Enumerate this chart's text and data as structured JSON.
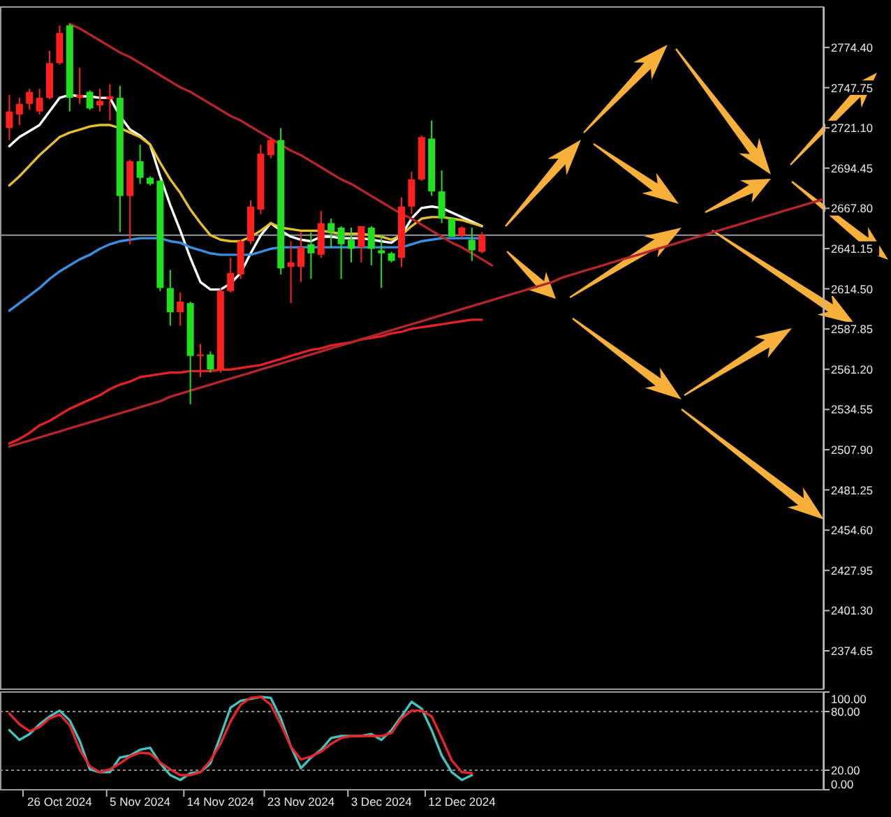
{
  "chart_data": [
    {
      "type": "candlestick",
      "categories": [
        null,
        null,
        null,
        null,
        null,
        null,
        null,
        null,
        null,
        null,
        null,
        null,
        null,
        null,
        null,
        null,
        null,
        null,
        null,
        null,
        null,
        null,
        null,
        null,
        null,
        null,
        null,
        null,
        null,
        null,
        null,
        null,
        null,
        null,
        null,
        null,
        null,
        null,
        null,
        null,
        null,
        null,
        null,
        null,
        null,
        null,
        null,
        null,
        null,
        null,
        null,
        null,
        null,
        null,
        null,
        null,
        null,
        null,
        null,
        null,
        null,
        null,
        null,
        null,
        null,
        null,
        null,
        null,
        null,
        null,
        null,
        null,
        null,
        null,
        null,
        null,
        null,
        null,
        null,
        null,
        null,
        null
      ],
      "ohlc": [
        [
          2721,
          2743,
          2713,
          2732
        ],
        [
          2730,
          2741,
          2723,
          2737
        ],
        [
          2737,
          2747,
          2733,
          2745
        ],
        [
          2732,
          2747,
          2730,
          2741
        ],
        [
          2741,
          2772,
          2740,
          2764
        ],
        [
          2764,
          2789,
          2763,
          2784
        ],
        [
          2789,
          2790,
          2732,
          2741
        ],
        [
          2741,
          2761,
          2737,
          2743
        ],
        [
          2745,
          2746,
          2733,
          2734
        ],
        [
          2736,
          2747,
          2732,
          2739
        ],
        [
          2740,
          2750,
          2726,
          2742
        ],
        [
          2741,
          2749,
          2652,
          2676
        ],
        [
          2676,
          2700,
          2644,
          2699
        ],
        [
          2699,
          2710,
          2684,
          2688
        ],
        [
          2688,
          2689,
          2683,
          2684
        ],
        [
          2686,
          2687,
          2613,
          2615
        ],
        [
          2615,
          2627,
          2590,
          2599
        ],
        [
          2599,
          2612,
          2590,
          2606
        ],
        [
          2605,
          2606,
          2538,
          2570
        ],
        [
          2570,
          2578,
          2556,
          2571
        ],
        [
          2571,
          2573,
          2559,
          2561
        ],
        [
          2561,
          2615,
          2559,
          2613
        ],
        [
          2613,
          2635,
          2612,
          2625
        ],
        [
          2624,
          2647,
          2621,
          2646
        ],
        [
          2646,
          2673,
          2644,
          2669
        ],
        [
          2667,
          2710,
          2664,
          2704
        ],
        [
          2703,
          2715,
          2701,
          2713
        ],
        [
          2713,
          2721,
          2624,
          2628
        ],
        [
          2629,
          2646,
          2605,
          2632
        ],
        [
          2629,
          2652,
          2619,
          2642
        ],
        [
          2644,
          2652,
          2621,
          2638
        ],
        [
          2637,
          2666,
          2635,
          2658
        ],
        [
          2658,
          2661,
          2642,
          2652
        ],
        [
          2655,
          2656,
          2621,
          2644
        ],
        [
          2647,
          2655,
          2632,
          2641
        ],
        [
          2642,
          2656,
          2632,
          2656
        ],
        [
          2655,
          2656,
          2630,
          2641
        ],
        [
          2640,
          2650,
          2615,
          2638
        ],
        [
          2638,
          2639,
          2632,
          2633
        ],
        [
          2635,
          2675,
          2629,
          2669
        ],
        [
          2669,
          2692,
          2664,
          2687
        ],
        [
          2687,
          2716,
          2686,
          2715
        ],
        [
          2714,
          2726,
          2676,
          2679
        ],
        [
          2679,
          2693,
          2658,
          2661
        ],
        [
          2661,
          2662,
          2649,
          2649
        ],
        [
          2650,
          2656,
          2648,
          2655
        ],
        [
          2647,
          2655,
          2633,
          2640
        ],
        [
          2639,
          2652,
          2638,
          2650
        ],
        null,
        null,
        null,
        null,
        null,
        null,
        null,
        null,
        null,
        null,
        null,
        null,
        null,
        null,
        null,
        null,
        null,
        null,
        null,
        null,
        null,
        null,
        null,
        null,
        null,
        null,
        null,
        null,
        null,
        null,
        null,
        null,
        null,
        null
      ],
      "colors": [
        "#ff2020",
        "#ff2020",
        "#ff2020",
        "#ff2020",
        "#ff2020",
        "#ff2020",
        "#20e020",
        "#ff2020",
        "#20e020",
        "#ff2020",
        "#ff2020",
        "#20e020",
        "#ff2020",
        "#20e020",
        "#20e020",
        "#20e020",
        "#20e020",
        "#ff2020",
        "#20e020",
        "#ff2020",
        "#20e020",
        "#ff2020",
        "#ff2020",
        "#ff2020",
        "#ff2020",
        "#ff2020",
        "#ff2020",
        "#20e020",
        "#ff2020",
        "#ff2020",
        "#20e020",
        "#ff2020",
        "#20e020",
        "#20e020",
        "#20e020",
        "#ff2020",
        "#20e020",
        "#20e020",
        "#20e020",
        "#ff2020",
        "#ff2020",
        "#ff2020",
        "#20e020",
        "#20e020",
        "#20e020",
        "#ff2020",
        "#20e020",
        "#ff2020",
        null,
        null,
        null,
        null,
        null,
        null,
        null,
        null,
        null,
        null,
        null,
        null,
        null,
        null,
        null,
        null,
        null,
        null,
        null,
        null,
        null,
        null,
        null,
        null,
        null,
        null,
        null,
        null,
        null,
        null,
        null,
        null,
        null,
        null
      ],
      "series": [
        {
          "type": "line",
          "color": "#ffffff",
          "values": [
            2709,
            2715,
            2719,
            2723,
            2732,
            2741,
            2743,
            2742,
            2742,
            2741,
            2741,
            2729,
            2720,
            2716,
            2710,
            2689,
            2670,
            2653,
            2635,
            2619,
            2614,
            2614,
            2618,
            2625,
            2638,
            2650,
            2658,
            2653,
            2649,
            2647,
            2646,
            2649,
            2649,
            2648,
            2648,
            2648,
            2647,
            2646,
            2645,
            2650,
            2661,
            2668,
            2669,
            2668,
            2665,
            2662,
            2659,
            2656,
            null,
            null,
            null,
            null,
            null,
            null,
            null,
            null,
            null,
            null,
            null,
            null,
            null,
            null,
            null,
            null,
            null,
            null,
            null,
            null,
            null,
            null,
            null,
            null,
            null,
            null,
            null,
            null,
            null,
            null,
            null,
            null,
            null,
            null
          ]
        },
        {
          "type": "line",
          "color": "#e6bf2e",
          "values": [
            2683,
            2689,
            2696,
            2703,
            2709,
            2715,
            2718,
            2720,
            2722,
            2723,
            2723,
            2721,
            2718,
            2715,
            2710,
            2698,
            2687,
            2678,
            2667,
            2658,
            2650,
            2647,
            2646,
            2646,
            2649,
            2653,
            2658,
            2655,
            2654,
            2653,
            2653,
            2653,
            2652,
            2651,
            2651,
            2651,
            2650,
            2649,
            2647,
            2650,
            2656,
            2661,
            2662,
            2662,
            2661,
            2660,
            2658,
            2656,
            null,
            null,
            null,
            null,
            null,
            null,
            null,
            null,
            null,
            null,
            null,
            null,
            null,
            null,
            null,
            null,
            null,
            null,
            null,
            null,
            null,
            null,
            null,
            null,
            null,
            null,
            null,
            null,
            null,
            null,
            null,
            null,
            null,
            null
          ]
        },
        {
          "type": "line",
          "color": "#3b8fe0",
          "values": [
            2600,
            2605,
            2610,
            2615,
            2621,
            2626,
            2630,
            2634,
            2637,
            2641,
            2644,
            2646,
            2647,
            2648,
            2648,
            2648,
            2646,
            2645,
            2642,
            2640,
            2638,
            2637,
            2637,
            2637,
            2637,
            2639,
            2641,
            2642,
            2642,
            2642,
            2642,
            2642,
            2642,
            2642,
            2642,
            2642,
            2642,
            2642,
            2642,
            2642,
            2644,
            2646,
            2647,
            2648,
            2648,
            2648,
            2648,
            2648,
            null,
            null,
            null,
            null,
            null,
            null,
            null,
            null,
            null,
            null,
            null,
            null,
            null,
            null,
            null,
            null,
            null,
            null,
            null,
            null,
            null,
            null,
            null,
            null,
            null,
            null,
            null,
            null,
            null,
            null,
            null,
            null,
            null,
            null
          ]
        },
        {
          "type": "line",
          "color": "#e02424",
          "values": [
            2512,
            2515,
            2519,
            2524,
            2527,
            2531,
            2535,
            2538,
            2541,
            2544,
            2548,
            2551,
            2553,
            2556,
            2557,
            2558,
            2559,
            2559,
            2560,
            2560,
            2560,
            2561,
            2561,
            2562,
            2563,
            2564,
            2566,
            2568,
            2570,
            2572,
            2574,
            2575,
            2577,
            2578,
            2579,
            2581,
            2582,
            2583,
            2585,
            2586,
            2588,
            2589,
            2590,
            2591,
            2592,
            2593,
            2594,
            2594,
            null,
            null,
            null,
            null,
            null,
            null,
            null,
            null,
            null,
            null,
            null,
            null,
            null,
            null,
            null,
            null,
            null,
            null,
            null,
            null,
            null,
            null,
            null,
            null,
            null,
            null,
            null,
            null,
            null,
            null,
            null,
            null,
            null,
            null
          ]
        },
        {
          "type": "line",
          "color": "#b3262b",
          "values": [
            null,
            null,
            null,
            null,
            null,
            null,
            2790,
            2787,
            2783,
            2779,
            2775,
            2771,
            2768,
            2764,
            2760,
            2756,
            2752,
            2748,
            2745,
            2741,
            2737,
            2733,
            2729,
            2726,
            2722,
            2718,
            2714,
            2710,
            2706,
            2703,
            2699,
            2695,
            2691,
            2687,
            2684,
            2680,
            2676,
            2672,
            2668,
            2664,
            2661,
            2657,
            2653,
            2649,
            2645,
            2642,
            2638,
            2634,
            2630,
            null,
            null,
            null,
            null,
            null,
            null,
            null,
            null,
            null,
            null,
            null,
            null,
            null,
            null,
            null,
            null,
            null,
            null,
            null,
            null,
            null,
            null,
            null,
            null,
            null,
            null,
            null,
            null,
            null,
            null,
            null,
            null,
            null
          ]
        },
        {
          "type": "line",
          "color": "#b3262b",
          "values": [
            2510,
            2512,
            2514,
            2516,
            2518,
            2520,
            2522,
            2524,
            2526,
            2528,
            2530,
            2532,
            2534,
            2536,
            2538,
            2540,
            2543,
            2545,
            2547,
            2549,
            2551,
            2553,
            2555,
            2557,
            2559,
            2561,
            2563,
            2565,
            2567,
            2569,
            2571,
            2573,
            2575,
            2577,
            2579,
            2581,
            2583,
            2585,
            2587,
            2589,
            2591,
            2593,
            2595,
            2597,
            2599,
            2601,
            2603,
            2605,
            2607,
            2609,
            2611,
            2613,
            2615,
            2617,
            2619,
            2622,
            2624,
            2626,
            2628,
            2630,
            2632,
            2634,
            2636,
            2638,
            2640,
            2642,
            2644,
            2646,
            2648,
            2650,
            2652,
            2654,
            2656,
            2658,
            2660,
            2662,
            2664,
            2666,
            2668,
            2670,
            2672,
            2674
          ]
        }
      ],
      "ylim": [
        2349.2,
        2801.2
      ],
      "yticks": [
        {
          "value": 2774.4,
          "label": "2774.40"
        },
        {
          "value": 2747.75,
          "label": "2747.75"
        },
        {
          "value": 2721.1,
          "label": "2721.10"
        },
        {
          "value": 2694.45,
          "label": "2694.45"
        },
        {
          "value": 2667.8,
          "label": "2667.80"
        },
        {
          "value": 2641.15,
          "label": "2641.15"
        },
        {
          "value": 2614.5,
          "label": "2614.50"
        },
        {
          "value": 2587.85,
          "label": "2587.85"
        },
        {
          "value": 2561.2,
          "label": "2561.20"
        },
        {
          "value": 2534.55,
          "label": "2534.55"
        },
        {
          "value": 2507.9,
          "label": "2507.90"
        },
        {
          "value": 2481.25,
          "label": "2481.25"
        },
        {
          "value": 2454.6,
          "label": "2454.60"
        },
        {
          "value": 2427.95,
          "label": "2427.95"
        },
        {
          "value": 2401.3,
          "label": "2401.30"
        },
        {
          "value": 2374.65,
          "label": "2374.65"
        }
      ],
      "ref_lines": [
        {
          "axis": "y",
          "value": 2650,
          "color": "#9a9a9a"
        }
      ],
      "tick_labels": "y"
    },
    {
      "type": "line",
      "categories": [
        null,
        null,
        null,
        null,
        null,
        "26 Oct 2024",
        null,
        null,
        null,
        null,
        null,
        null,
        null,
        "5 Nov 2024",
        null,
        null,
        null,
        null,
        null,
        null,
        null,
        "14 Nov 2024",
        null,
        null,
        null,
        null,
        null,
        null,
        null,
        "23 Nov 2024",
        null,
        null,
        null,
        null,
        null,
        null,
        null,
        "3 Dec 2024",
        null,
        null,
        null,
        null,
        null,
        null,
        null,
        "12 Dec 2024",
        null,
        null,
        null,
        null,
        null,
        null,
        null,
        null,
        null,
        null,
        null,
        null,
        null,
        null,
        null,
        null,
        null,
        null,
        null,
        null,
        null,
        null,
        null,
        null,
        null,
        null,
        null,
        null,
        null,
        null,
        null,
        null,
        null,
        null,
        null,
        null
      ],
      "series": [
        {
          "color": "#46c3bd",
          "values": [
            61,
            51,
            57,
            67,
            75,
            81,
            71,
            50,
            21,
            18,
            18,
            33,
            35,
            41,
            43,
            27,
            15,
            10,
            17,
            18,
            27,
            55,
            84,
            91,
            93,
            95,
            94,
            73,
            44,
            22,
            33,
            41,
            53,
            55,
            55,
            55,
            57,
            51,
            61,
            75,
            90,
            83,
            61,
            35,
            18,
            10,
            15,
            null,
            null,
            null,
            null,
            null,
            null,
            null,
            null,
            null,
            null,
            null,
            null,
            null,
            null,
            null,
            null,
            null,
            null,
            null,
            null,
            null,
            null,
            null,
            null,
            null,
            null,
            null,
            null,
            null,
            null,
            null,
            null,
            null,
            null,
            null
          ]
        },
        {
          "color": "#e3262b",
          "values": [
            78,
            67,
            60,
            64,
            73,
            77,
            66,
            41,
            24,
            18,
            21,
            27,
            34,
            38,
            37,
            28,
            21,
            15,
            15,
            18,
            30,
            47,
            70,
            87,
            94,
            95,
            87,
            67,
            44,
            31,
            34,
            39,
            47,
            53,
            55,
            55,
            55,
            55,
            58,
            73,
            81,
            81,
            75,
            53,
            30,
            18,
            17,
            null,
            null,
            null,
            null,
            null,
            null,
            null,
            null,
            null,
            null,
            null,
            null,
            null,
            null,
            null,
            null,
            null,
            null,
            null,
            null,
            null,
            null,
            null,
            null,
            null,
            null,
            null,
            null,
            null,
            null,
            null,
            null,
            null,
            null,
            null
          ]
        }
      ],
      "ylim": [
        0,
        100
      ],
      "yticks": [
        {
          "value": 100,
          "label": "100.00"
        },
        {
          "value": 80,
          "label": "80.00"
        },
        {
          "value": 20,
          "label": "20.00"
        },
        {
          "value": 0,
          "label": "0.00"
        }
      ],
      "ref_lines": [
        {
          "axis": "y",
          "value": 80,
          "color": "#8c8c8c",
          "line_style": "dotted"
        },
        {
          "axis": "y",
          "value": 20,
          "color": "#8c8c8c",
          "line_style": "dotted"
        }
      ]
    }
  ]
}
